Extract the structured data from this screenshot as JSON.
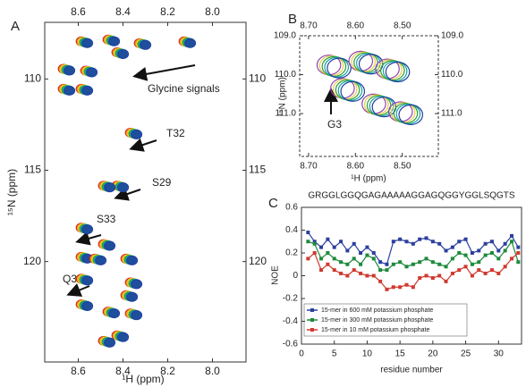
{
  "chart_data": [
    {
      "type": "contour",
      "panel_label": "A",
      "xlabel": "¹H  (ppm)",
      "ylabel": "¹⁵N (ppm)",
      "xlim": [
        8.75,
        7.85
      ],
      "ylim": [
        125.5,
        106.9
      ],
      "xticks": [
        {
          "value": 8.6,
          "label": "8.6"
        },
        {
          "value": 8.4,
          "label": "8.4"
        },
        {
          "value": 8.2,
          "label": "8.2"
        },
        {
          "value": 8.0,
          "label": "8.0"
        }
      ],
      "yticks": [
        110,
        115,
        120
      ],
      "contour_colors": [
        "#d62728",
        "#f39c12",
        "#e6dc32",
        "#2ca02c",
        "#17a2a2",
        "#1f3f9f"
      ],
      "peaks": {
        "x": [
          8.57,
          8.45,
          8.31,
          8.11,
          8.41,
          8.65,
          8.55,
          8.57,
          8.65,
          8.35,
          8.41,
          8.47,
          8.57,
          8.47,
          8.57,
          8.51,
          8.37,
          8.35,
          8.57,
          8.57,
          8.45,
          8.37,
          8.41,
          8.35,
          8.47
        ],
        "y": [
          108.0,
          107.9,
          108.1,
          108.0,
          108.6,
          109.5,
          109.6,
          110.6,
          110.6,
          113.0,
          115.9,
          115.9,
          118.2,
          119.1,
          119.8,
          119.9,
          119.9,
          121.2,
          121.0,
          122.4,
          122.8,
          121.9,
          124.1,
          122.9,
          124.4
        ]
      },
      "annotations": [
        "Glycine signals",
        "T32",
        "S29",
        "S33",
        "Q30"
      ]
    },
    {
      "type": "contour",
      "panel_label": "B",
      "xlabel": "¹H (ppm)",
      "ylabel": "¹⁵N (ppm)",
      "xlim": [
        8.719,
        8.423
      ],
      "ylim": [
        112.1,
        109.0
      ],
      "xticks": [
        {
          "value": 8.7,
          "label": "8.70"
        },
        {
          "value": 8.6,
          "label": "8.60"
        },
        {
          "value": 8.5,
          "label": "8.50"
        }
      ],
      "yticks": [
        {
          "value": 109,
          "label": "109.0"
        },
        {
          "value": 110,
          "label": "110.0"
        },
        {
          "value": 111,
          "label": "111.0"
        }
      ],
      "contour_colors": [
        "#8e44ad",
        "#e6c84a",
        "#2ca02c",
        "#17a2a2",
        "#1f3f9f"
      ],
      "peaks": {
        "x": [
          8.643,
          8.575,
          8.518,
          8.547,
          8.49,
          8.614
        ],
        "y": [
          109.8,
          109.7,
          109.9,
          110.8,
          111.0,
          110.4
        ]
      },
      "annotations": [
        "G3"
      ]
    },
    {
      "type": "line",
      "panel_label": "C",
      "xlabel": "residue number",
      "ylabel": "NOE",
      "annotations": [
        "GRGGLGGQGAGAAAAAGGAGQGGYGGLSQGTS"
      ],
      "xlim": [
        0,
        33.5
      ],
      "ylim": [
        -0.6,
        0.6
      ],
      "xticks": [
        0,
        5,
        10,
        15,
        20,
        25,
        30
      ],
      "yticks": [
        -0.6,
        -0.4,
        -0.2,
        0,
        0.2,
        0.4,
        0.6
      ],
      "legend": "lower left",
      "x": [
        1,
        2,
        3,
        4,
        5,
        6,
        7,
        8,
        9,
        10,
        11,
        12,
        13,
        14,
        15,
        16,
        17,
        18,
        19,
        20,
        21,
        22,
        23,
        24,
        25,
        26,
        27,
        28,
        29,
        30,
        31,
        32,
        33
      ],
      "series": [
        {
          "name": "15-mer in 600 mM potassium phosphate",
          "color": "#2b3f9e",
          "values": [
            0.38,
            0.3,
            0.25,
            0.32,
            0.25,
            0.3,
            0.22,
            0.28,
            0.2,
            0.25,
            0.2,
            0.12,
            0.1,
            0.3,
            0.32,
            0.3,
            0.28,
            0.32,
            0.33,
            0.3,
            0.28,
            0.22,
            0.25,
            0.3,
            0.32,
            0.2,
            0.22,
            0.28,
            0.3,
            0.22,
            0.28,
            0.35,
            0.25
          ]
        },
        {
          "name": "15-mer in 300 mM potassium phosphate",
          "color": "#1e8a3c",
          "values": [
            0.3,
            0.28,
            0.15,
            0.2,
            0.15,
            0.12,
            0.1,
            0.15,
            0.1,
            0.18,
            0.15,
            0.05,
            0.05,
            0.1,
            0.12,
            0.08,
            0.1,
            0.12,
            0.15,
            0.12,
            0.1,
            0.08,
            0.15,
            0.2,
            0.18,
            0.1,
            0.12,
            0.18,
            0.2,
            0.15,
            0.22,
            0.3,
            0.12
          ]
        },
        {
          "name": "15-mer in 10 mM potassium phosphate",
          "color": "#d03a2f",
          "values": [
            0.15,
            0.2,
            0.05,
            0.1,
            0.05,
            0.02,
            0.0,
            0.05,
            0.02,
            0.0,
            0.0,
            -0.05,
            -0.12,
            -0.1,
            -0.1,
            -0.08,
            -0.1,
            -0.02,
            0.0,
            -0.02,
            0.0,
            -0.05,
            0.02,
            0.05,
            0.08,
            0.0,
            0.05,
            0.02,
            0.05,
            0.02,
            0.08,
            0.15,
            0.2
          ]
        }
      ]
    }
  ]
}
